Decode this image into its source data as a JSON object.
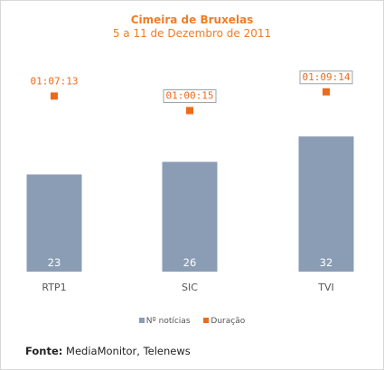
{
  "chart_data": {
    "type": "bar",
    "title": "Cimeira de Bruxelas",
    "subtitle": "5 a 11 de Dezembro de 2011",
    "categories": [
      "RTP1",
      "SIC",
      "TVI"
    ],
    "series": [
      {
        "name": "Nº notícias",
        "kind": "bar",
        "color": "#8a9db5",
        "values": [
          23,
          26,
          32
        ],
        "labels": [
          "23",
          "26",
          "32"
        ]
      },
      {
        "name": "Duração",
        "kind": "point",
        "color": "#ee6a1b",
        "values": [
          "01:07:13",
          "01:00:15",
          "01:09:14"
        ],
        "labels": [
          "01:07:13",
          "01:00:15",
          "01:09:14"
        ]
      }
    ],
    "legend_position": "bottom",
    "grid": false,
    "highlighted_label_boxes": [
      "SIC",
      "TVI"
    ]
  },
  "source": {
    "label": "Fonte:",
    "text": "MediaMonitor, Telenews"
  }
}
